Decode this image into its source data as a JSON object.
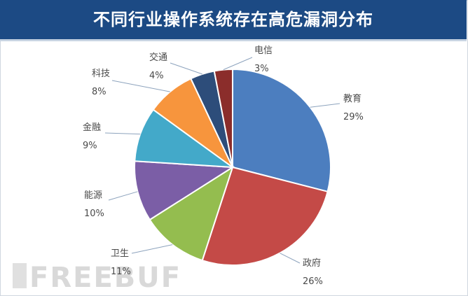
{
  "title": "不同行业操作系统存在高危漏洞分布",
  "watermark": "FREEBUF",
  "chart_data": {
    "type": "pie",
    "title": "不同行业操作系统存在高危漏洞分布",
    "slices": [
      {
        "label": "教育",
        "value": 29,
        "pct": "29%",
        "color": "#4c7ebf"
      },
      {
        "label": "政府",
        "value": 26,
        "pct": "26%",
        "color": "#c44a47"
      },
      {
        "label": "卫生",
        "value": 11,
        "pct": "11%",
        "color": "#94bd4f"
      },
      {
        "label": "能源",
        "value": 10,
        "pct": "10%",
        "color": "#7b5ea6"
      },
      {
        "label": "金融",
        "value": 9,
        "pct": "9%",
        "color": "#43a9c9"
      },
      {
        "label": "科技",
        "value": 8,
        "pct": "8%",
        "color": "#f7953d"
      },
      {
        "label": "交通",
        "value": 4,
        "pct": "4%",
        "color": "#2d4d7a"
      },
      {
        "label": "电信",
        "value": 3,
        "pct": "3%",
        "color": "#8b2d2b"
      }
    ]
  }
}
